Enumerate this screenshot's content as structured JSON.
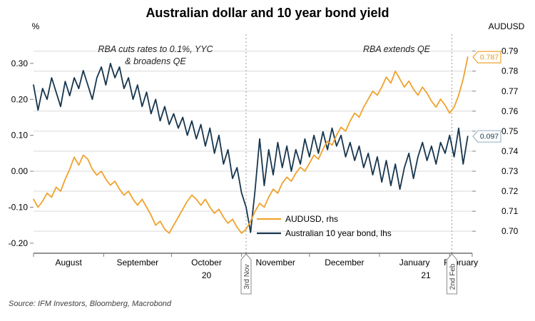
{
  "title": "Australian dollar and 10 year bond yield",
  "source": "Source: IFM Investors, Bloomberg, Macrobond",
  "chart_data": {
    "type": "line",
    "title": "Australian dollar and 10 year bond yield",
    "x_unit": "days since 1 Aug 2020",
    "x_range": [
      0,
      194
    ],
    "grid": "horizontal",
    "left_axis": {
      "label": "%",
      "range": [
        -0.228,
        0.387
      ],
      "ticks": [
        {
          "v": 0.3,
          "label": "0.30"
        },
        {
          "v": 0.2,
          "label": "0.20"
        },
        {
          "v": 0.1,
          "label": "0.10"
        },
        {
          "v": 0.0,
          "label": "0.00"
        },
        {
          "v": -0.1,
          "label": "-0.10"
        },
        {
          "v": -0.2,
          "label": "-0.20"
        }
      ]
    },
    "right_axis": {
      "label": "AUDUSD",
      "range": [
        0.689,
        0.7995
      ],
      "ticks": [
        {
          "v": 0.79,
          "label": "0.79"
        },
        {
          "v": 0.78,
          "label": "0.78"
        },
        {
          "v": 0.77,
          "label": "0.77"
        },
        {
          "v": 0.76,
          "label": "0.76"
        },
        {
          "v": 0.75,
          "label": "0.75"
        },
        {
          "v": 0.74,
          "label": "0.74"
        },
        {
          "v": 0.73,
          "label": "0.73"
        },
        {
          "v": 0.72,
          "label": "0.72"
        },
        {
          "v": 0.71,
          "label": "0.71"
        },
        {
          "v": 0.7,
          "label": "0.70"
        }
      ]
    },
    "months": [
      {
        "label": "August",
        "start": 0,
        "end": 31
      },
      {
        "label": "September",
        "start": 31,
        "end": 61
      },
      {
        "label": "October",
        "start": 61,
        "end": 92
      },
      {
        "label": "November",
        "start": 92,
        "end": 122
      },
      {
        "label": "December",
        "start": 122,
        "end": 153
      },
      {
        "label": "January",
        "start": 153,
        "end": 184
      },
      {
        "label": "February",
        "start": 184,
        "end": 194
      }
    ],
    "years": [
      {
        "label": "20",
        "start": 0,
        "end": 153
      },
      {
        "label": "21",
        "start": 153,
        "end": 194
      }
    ],
    "event_lines": [
      {
        "day": 94,
        "label": "3rd Nov"
      },
      {
        "day": 185,
        "label": "2nd Feb"
      }
    ],
    "annotations": [
      {
        "lines": [
          "RBA cuts rates to 0.1%, YYC",
          "& broadens QE"
        ]
      },
      {
        "lines": [
          "RBA extends QE"
        ]
      }
    ],
    "legend": [
      {
        "label": "AUDUSD, rhs"
      },
      {
        "label": "Australian 10 year bond, lhs"
      }
    ],
    "callouts": [
      {
        "label": "0.787",
        "value": 0.787,
        "axis": "right",
        "color": "#F0A22E",
        "text_color": "#E09A20"
      },
      {
        "label": "0.097",
        "value": 0.097,
        "axis": "left",
        "color": "#9FB6CA",
        "text_color": "#17364E"
      }
    ],
    "days": [
      0,
      2,
      4,
      6,
      8,
      10,
      12,
      14,
      16,
      18,
      20,
      22,
      24,
      26,
      28,
      30,
      32,
      34,
      36,
      38,
      40,
      42,
      44,
      46,
      48,
      50,
      52,
      54,
      56,
      58,
      60,
      62,
      64,
      66,
      68,
      70,
      72,
      74,
      76,
      78,
      80,
      82,
      84,
      86,
      88,
      90,
      92,
      94,
      96,
      98,
      100,
      102,
      104,
      106,
      108,
      110,
      112,
      114,
      116,
      118,
      120,
      122,
      124,
      126,
      128,
      130,
      132,
      134,
      136,
      138,
      140,
      142,
      144,
      146,
      148,
      150,
      152,
      154,
      156,
      158,
      160,
      162,
      164,
      166,
      168,
      170,
      172,
      174,
      176,
      178,
      180,
      182,
      184,
      186,
      188,
      190,
      192
    ],
    "series": [
      {
        "id": "audusd-line",
        "name": "AUDUSD, rhs",
        "axis": "right",
        "color": "#F0A22E",
        "values": [
          0.716,
          0.712,
          0.715,
          0.719,
          0.717,
          0.722,
          0.72,
          0.726,
          0.731,
          0.737,
          0.733,
          0.738,
          0.736,
          0.731,
          0.728,
          0.73,
          0.726,
          0.723,
          0.725,
          0.721,
          0.718,
          0.72,
          0.716,
          0.713,
          0.716,
          0.712,
          0.708,
          0.703,
          0.705,
          0.701,
          0.699,
          0.703,
          0.707,
          0.711,
          0.715,
          0.718,
          0.716,
          0.713,
          0.716,
          0.712,
          0.709,
          0.711,
          0.707,
          0.704,
          0.706,
          0.702,
          0.699,
          0.701,
          0.705,
          0.71,
          0.714,
          0.712,
          0.717,
          0.721,
          0.719,
          0.724,
          0.727,
          0.725,
          0.729,
          0.732,
          0.73,
          0.734,
          0.738,
          0.736,
          0.741,
          0.745,
          0.743,
          0.748,
          0.752,
          0.75,
          0.755,
          0.759,
          0.757,
          0.762,
          0.766,
          0.77,
          0.768,
          0.772,
          0.777,
          0.774,
          0.78,
          0.776,
          0.772,
          0.775,
          0.771,
          0.768,
          0.772,
          0.769,
          0.765,
          0.762,
          0.766,
          0.763,
          0.759,
          0.762,
          0.768,
          0.776,
          0.787
        ]
      },
      {
        "id": "bond-line",
        "name": "Australian 10 year bond, lhs",
        "axis": "left",
        "color": "#17364E",
        "values": [
          0.24,
          0.17,
          0.23,
          0.2,
          0.26,
          0.22,
          0.18,
          0.25,
          0.21,
          0.26,
          0.23,
          0.28,
          0.24,
          0.2,
          0.26,
          0.29,
          0.24,
          0.3,
          0.26,
          0.29,
          0.23,
          0.26,
          0.2,
          0.24,
          0.18,
          0.22,
          0.16,
          0.2,
          0.14,
          0.18,
          0.13,
          0.16,
          0.12,
          0.15,
          0.1,
          0.14,
          0.09,
          0.13,
          0.07,
          0.12,
          0.05,
          0.1,
          0.02,
          0.06,
          -0.02,
          0.01,
          -0.06,
          -0.1,
          -0.17,
          -0.05,
          0.09,
          -0.04,
          0.06,
          -0.01,
          0.08,
          0.01,
          0.07,
          0.0,
          0.06,
          0.02,
          0.09,
          0.04,
          0.1,
          0.05,
          0.11,
          0.06,
          0.12,
          0.07,
          0.1,
          0.04,
          0.08,
          0.03,
          0.07,
          0.01,
          0.05,
          -0.01,
          0.04,
          -0.03,
          0.03,
          -0.04,
          0.02,
          -0.05,
          0.01,
          0.05,
          -0.02,
          0.04,
          0.08,
          0.03,
          0.07,
          0.02,
          0.08,
          0.05,
          0.1,
          0.04,
          0.12,
          0.02,
          0.097
        ]
      }
    ]
  }
}
